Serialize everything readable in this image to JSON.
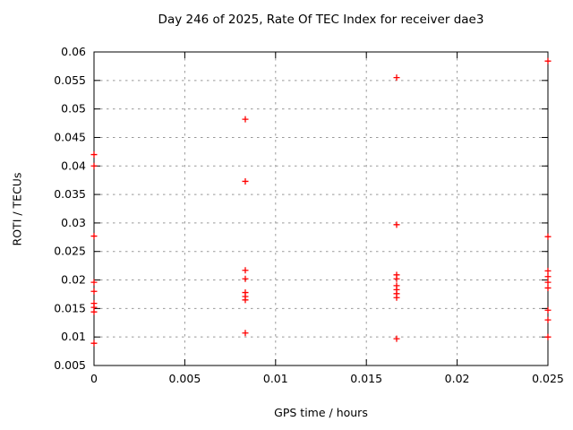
{
  "page": {
    "background": "#ffffff"
  },
  "chart_data": {
    "type": "scatter",
    "title": "Day 246 of 2025, Rate Of TEC Index for receiver dae3",
    "xlabel": "GPS time / hours",
    "ylabel": "ROTI / TECUs",
    "xlim": [
      0,
      0.025
    ],
    "ylim": [
      0.005,
      0.06
    ],
    "grid": true,
    "legend": "none",
    "axis_color": "#000000",
    "grid_color": "#999999",
    "marker": {
      "shape": "plus",
      "color": "#ff0000",
      "size": 7
    },
    "xticks": [
      {
        "value": 0,
        "label": "0"
      },
      {
        "value": 0.005,
        "label": "0.005"
      },
      {
        "value": 0.01,
        "label": "0.01"
      },
      {
        "value": 0.015,
        "label": "0.015"
      },
      {
        "value": 0.02,
        "label": "0.02"
      },
      {
        "value": 0.025,
        "label": "0.025"
      }
    ],
    "yticks": [
      {
        "value": 0.005,
        "label": "0.005"
      },
      {
        "value": 0.01,
        "label": "0.01"
      },
      {
        "value": 0.015,
        "label": "0.015"
      },
      {
        "value": 0.02,
        "label": "0.02"
      },
      {
        "value": 0.025,
        "label": "0.025"
      },
      {
        "value": 0.03,
        "label": "0.03"
      },
      {
        "value": 0.035,
        "label": "0.035"
      },
      {
        "value": 0.04,
        "label": "0.04"
      },
      {
        "value": 0.045,
        "label": "0.045"
      },
      {
        "value": 0.05,
        "label": "0.05"
      },
      {
        "value": 0.055,
        "label": "0.055"
      },
      {
        "value": 0.06,
        "label": "0.06"
      }
    ],
    "series": [
      {
        "name": "ROTI",
        "points": [
          [
            0,
            0.042
          ],
          [
            0,
            0.04
          ],
          [
            0,
            0.0277
          ],
          [
            0,
            0.0196
          ],
          [
            0,
            0.018
          ],
          [
            0,
            0.0159
          ],
          [
            0,
            0.0152
          ],
          [
            0,
            0.0144
          ],
          [
            0,
            0.0089
          ],
          [
            0.008333,
            0.0482
          ],
          [
            0.008333,
            0.0373
          ],
          [
            0.008333,
            0.0217
          ],
          [
            0.008333,
            0.0202
          ],
          [
            0.008333,
            0.0178
          ],
          [
            0.008333,
            0.0171
          ],
          [
            0.008333,
            0.0165
          ],
          [
            0.008333,
            0.0107
          ],
          [
            0.016667,
            0.0555
          ],
          [
            0.016667,
            0.0297
          ],
          [
            0.016667,
            0.0209
          ],
          [
            0.016667,
            0.0202
          ],
          [
            0.016667,
            0.019
          ],
          [
            0.016667,
            0.0183
          ],
          [
            0.016667,
            0.0176
          ],
          [
            0.016667,
            0.0169
          ],
          [
            0.016667,
            0.0097
          ],
          [
            0.025,
            0.0584
          ],
          [
            0.025,
            0.0276
          ],
          [
            0.025,
            0.0216
          ],
          [
            0.025,
            0.0206
          ],
          [
            0.025,
            0.0196
          ],
          [
            0.025,
            0.0186
          ],
          [
            0.025,
            0.0147
          ],
          [
            0.025,
            0.013
          ],
          [
            0.025,
            0.01
          ]
        ]
      }
    ]
  }
}
